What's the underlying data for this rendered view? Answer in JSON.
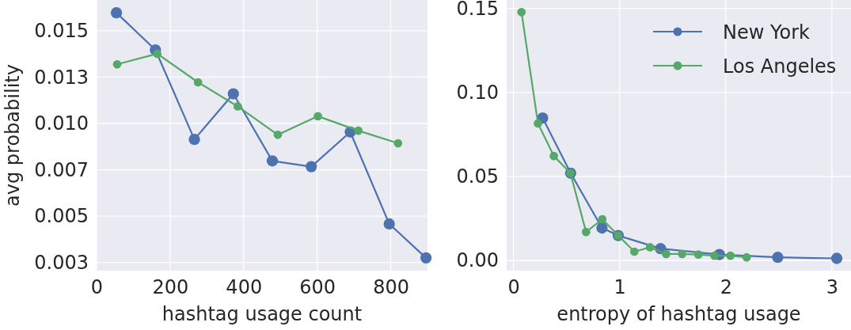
{
  "chart_data": [
    {
      "type": "line",
      "xlabel": "hashtag usage count",
      "ylabel": "avg probability",
      "xlim": [
        0,
        900
      ],
      "xticks": [
        0,
        200,
        400,
        600,
        800
      ],
      "ylim": [
        0.00206,
        0.01666
      ],
      "yticks": [
        {
          "value": 0.0025,
          "label": "0.003"
        },
        {
          "value": 0.005,
          "label": "0.005"
        },
        {
          "value": 0.0075,
          "label": "0.007"
        },
        {
          "value": 0.01,
          "label": "0.010"
        },
        {
          "value": 0.0125,
          "label": "0.013"
        },
        {
          "value": 0.015,
          "label": "0.015"
        }
      ],
      "grid": true,
      "marker": "circle",
      "legend": false,
      "series": [
        {
          "color": "#4c72b0",
          "x": [
            54,
            160,
            266,
            372,
            478,
            584,
            690,
            796,
            896
          ],
          "values": [
            0.01597,
            0.01397,
            0.00914,
            0.0116,
            0.00798,
            0.00767,
            0.00954,
            0.00458,
            0.00275
          ]
        },
        {
          "color": "#55a868",
          "x": [
            56,
            165,
            276,
            384,
            493,
            602,
            712,
            820
          ],
          "values": [
            0.01319,
            0.01376,
            0.01222,
            0.01092,
            0.00939,
            0.01039,
            0.00961,
            0.00893
          ]
        }
      ]
    },
    {
      "type": "line",
      "xlabel": "entropy of hashtag usage",
      "xlim": [
        -0.064,
        3.18
      ],
      "xticks": [
        0,
        1,
        2,
        3
      ],
      "ylim": [
        -0.006,
        0.155
      ],
      "yticks": [
        {
          "value": 0,
          "label": "0.00"
        },
        {
          "value": 0.05,
          "label": "0.05"
        },
        {
          "value": 0.1,
          "label": "0.10"
        },
        {
          "value": 0.15,
          "label": "0.15"
        }
      ],
      "grid": true,
      "marker": "circle",
      "legend": "top right",
      "series": [
        {
          "name": "New York",
          "color": "#4c72b0",
          "x": [
            0.275,
            0.539,
            0.834,
            0.987,
            1.386,
            1.94,
            2.49,
            3.046
          ],
          "values": [
            0.0848,
            0.052,
            0.0194,
            0.0149,
            0.0071,
            0.0036,
            0.0019,
            0.0013
          ]
        },
        {
          "name": "Los Angeles",
          "color": "#55a868",
          "x": [
            0.076,
            0.231,
            0.381,
            0.537,
            0.684,
            0.837,
            0.987,
            1.139,
            1.287,
            1.439,
            1.589,
            1.742,
            1.894,
            2.044,
            2.197
          ],
          "values": [
            0.1478,
            0.0816,
            0.0622,
            0.052,
            0.017,
            0.0246,
            0.0149,
            0.0053,
            0.0079,
            0.0039,
            0.0039,
            0.0036,
            0.0029,
            0.0029,
            0.0019
          ]
        }
      ]
    }
  ]
}
